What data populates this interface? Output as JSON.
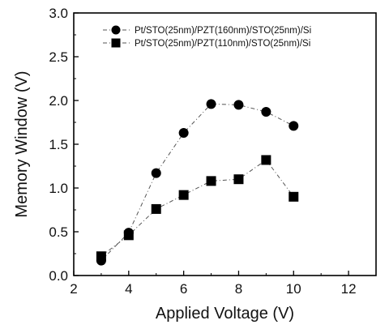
{
  "chart_data": {
    "type": "line",
    "xlabel": "Applied Voltage (V)",
    "ylabel": "Memory Window (V)",
    "xlim": [
      2,
      13
    ],
    "ylim": [
      0.0,
      3.0
    ],
    "xticks": [
      2,
      4,
      6,
      8,
      10,
      12
    ],
    "xtick_labels": [
      "2",
      "4",
      "6",
      "8",
      "10",
      "12"
    ],
    "yticks": [
      0.0,
      0.5,
      1.0,
      1.5,
      2.0,
      2.5,
      3.0
    ],
    "ytick_labels": [
      "0.0",
      "0.5",
      "1.0",
      "1.5",
      "2.0",
      "2.5",
      "3.0"
    ],
    "grid": false,
    "legend_position": "top",
    "series": [
      {
        "name": "Pt/STO(25nm)/PZT(160nm)/STO(25nm)/Si",
        "marker": "circle",
        "line_style": "dash-dot",
        "x": [
          3,
          4,
          5,
          6,
          7,
          8,
          9,
          10
        ],
        "values": [
          0.17,
          0.49,
          1.17,
          1.63,
          1.96,
          1.95,
          1.87,
          1.71
        ]
      },
      {
        "name": "Pt/STO(25nm)/PZT(110nm)/STO(25nm)/Si",
        "marker": "square",
        "line_style": "dash-dot",
        "x": [
          3,
          4,
          5,
          6,
          7,
          8,
          9,
          10
        ],
        "values": [
          0.22,
          0.46,
          0.76,
          0.92,
          1.08,
          1.1,
          1.32,
          0.9
        ]
      }
    ],
    "colors": {
      "marker": "#000000",
      "line": "#555555"
    }
  }
}
